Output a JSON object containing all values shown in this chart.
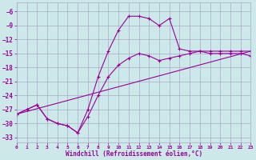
{
  "xlabel": "Windchill (Refroidissement éolien,°C)",
  "bg_color": "#cce8e8",
  "grid_color": "#aaaacc",
  "line_color": "#990099",
  "xlim": [
    0,
    23
  ],
  "ylim": [
    -34,
    -4
  ],
  "yticks": [
    -33,
    -30,
    -27,
    -24,
    -21,
    -18,
    -15,
    -12,
    -9,
    -6
  ],
  "xticks": [
    0,
    1,
    2,
    3,
    4,
    5,
    6,
    7,
    8,
    9,
    10,
    11,
    12,
    13,
    14,
    15,
    16,
    17,
    18,
    19,
    20,
    21,
    22,
    23
  ],
  "line1_x": [
    0,
    1,
    2,
    3,
    4,
    5,
    6,
    7,
    8,
    9,
    10,
    11,
    12,
    13,
    14,
    15,
    16,
    17,
    18,
    19,
    20,
    21,
    22,
    23
  ],
  "line1_y": [
    -28,
    -27,
    -26,
    -29,
    -30,
    -30.5,
    -32,
    -27,
    -20,
    -14.5,
    -10,
    -7,
    -7,
    -7.5,
    -9,
    -7.5,
    -14,
    -14.5,
    -14.5,
    -15,
    -15,
    -15,
    -15,
    -15.5
  ],
  "line2_x": [
    0,
    1,
    2,
    3,
    4,
    5,
    6,
    7,
    8,
    9,
    10,
    11,
    12,
    13,
    14,
    15,
    16,
    17,
    18,
    19,
    20,
    21,
    22,
    23
  ],
  "line2_y": [
    -28,
    -27,
    -26,
    -29,
    -30,
    -30.5,
    -32,
    -28.5,
    -24,
    -20,
    -17.5,
    -16,
    -15,
    -15.5,
    -16.5,
    -16,
    -15.5,
    -15,
    -14.5,
    -14.5,
    -14.5,
    -14.5,
    -14.5,
    -14.5
  ],
  "line3_x": [
    0,
    23
  ],
  "line3_y": [
    -28,
    -14.5
  ]
}
